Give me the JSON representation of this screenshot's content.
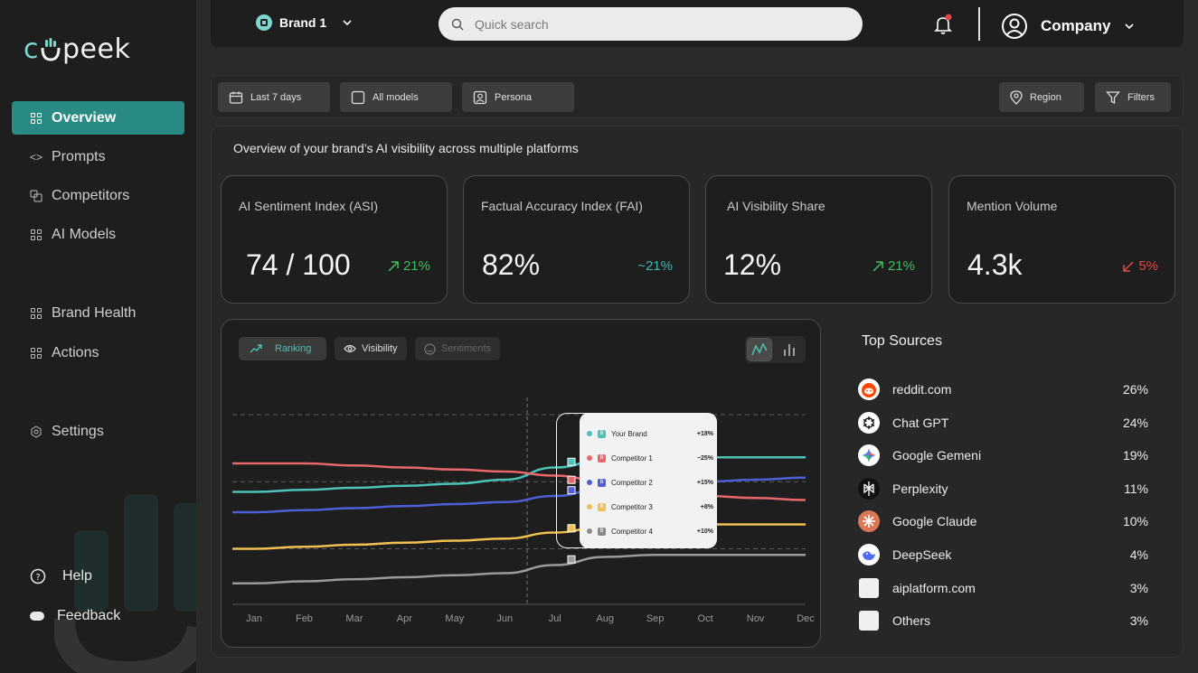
{
  "logo": {
    "text_c": "c",
    "text_rest": "peek"
  },
  "sidebar": {
    "items": [
      {
        "label": "Overview",
        "icon": "grid-icon",
        "active": true
      },
      {
        "label": "Prompts",
        "icon": "code-icon"
      },
      {
        "label": "Competitors",
        "icon": "competitors-icon"
      },
      {
        "label": "AI Models",
        "icon": "grid-icon"
      },
      {
        "label": "Brand Health",
        "icon": "grid-icon"
      },
      {
        "label": "Actions",
        "icon": "grid-icon"
      },
      {
        "label": "Settings",
        "icon": "settings-icon"
      }
    ],
    "help": "Help",
    "feedback": "Feedback"
  },
  "topbar": {
    "brand": "Brand 1",
    "search_placeholder": "Quick search",
    "company": "Company"
  },
  "filters": {
    "date": "Last 7 days",
    "models": "All models",
    "persona": "Persona",
    "region": "Region",
    "filters": "Filters"
  },
  "intro": "Overview of your brand’s AI visibility across multiple platforms",
  "kpis": [
    {
      "title": "AI Sentiment Index (ASI)",
      "value": "74 / 100",
      "delta": "21%",
      "direction": "up",
      "color": "#3fbf5f"
    },
    {
      "title": "Factual Accuracy Index (FAI)",
      "value": "82%",
      "delta": "~21%",
      "direction": "flat",
      "color": "#3fb8b0"
    },
    {
      "title": "AI Visibility Share",
      "value": "12%",
      "delta": "21%",
      "direction": "up",
      "color": "#3fbf5f"
    },
    {
      "title": "Mention Volume",
      "value": "4.3k",
      "delta": "5%",
      "direction": "down",
      "color": "#e04848"
    }
  ],
  "chart_tabs": {
    "ranking": "Ranking",
    "visibility": "Visibility",
    "sentiments": "Sentiments"
  },
  "chart_data": {
    "type": "line",
    "x": [
      "Jan",
      "Feb",
      "Mar",
      "Apr",
      "May",
      "Jun",
      "Jul",
      "Aug",
      "Sep",
      "Oct",
      "Nov",
      "Dec"
    ],
    "series": [
      {
        "name": "Your Brand",
        "color": "#4cc3b8",
        "values": [
          50,
          51,
          52,
          53,
          54,
          56,
          62,
          66,
          67,
          67,
          67,
          67
        ]
      },
      {
        "name": "Competitor 1",
        "color": "#e8676b",
        "values": [
          64,
          64,
          63,
          62,
          61,
          60,
          58,
          55,
          50,
          48,
          47,
          46
        ]
      },
      {
        "name": "Competitor 2",
        "color": "#4e5fd6",
        "values": [
          40,
          41,
          42,
          43,
          44,
          45,
          48,
          52,
          54,
          55,
          56,
          57
        ]
      },
      {
        "name": "Competitor 3",
        "color": "#f0c050",
        "values": [
          22,
          23,
          24,
          25,
          26,
          27,
          30,
          33,
          34,
          34,
          34,
          34
        ]
      },
      {
        "name": "Competitor 4",
        "color": "#9a9a9a",
        "values": [
          5,
          6,
          7,
          8,
          9,
          10,
          14,
          18,
          19,
          19,
          19,
          19
        ]
      }
    ],
    "ylim": [
      0,
      100
    ],
    "grid": "dashed",
    "legend": "tooltip"
  },
  "tooltip": {
    "badge": "B",
    "rows": [
      {
        "name": "Your Brand",
        "value": "+18%",
        "color": "#4cc3b8"
      },
      {
        "name": "Competitor 1",
        "value": "−25%",
        "color": "#e8676b"
      },
      {
        "name": "Competitor 2",
        "value": "+15%",
        "color": "#4e5fd6"
      },
      {
        "name": "Competitor 3",
        "value": "+8%",
        "color": "#f0c050"
      },
      {
        "name": "Competitor 4",
        "value": "+10%",
        "color": "#8a8a8a"
      }
    ]
  },
  "sources": {
    "title": "Top Sources",
    "items": [
      {
        "name": "reddit.com",
        "pct": "26%",
        "icon": "reddit-icon",
        "color": "#ff4500"
      },
      {
        "name": "Chat GPT",
        "pct": "24%",
        "icon": "chatgpt-icon",
        "color": "#ffffff"
      },
      {
        "name": "Google Gemeni",
        "pct": "19%",
        "icon": "gemini-icon",
        "color": "#ffffff"
      },
      {
        "name": "Perplexity",
        "pct": "11%",
        "icon": "perplexity-icon",
        "color": "#111111"
      },
      {
        "name": "Google Claude",
        "pct": "10%",
        "icon": "claude-icon",
        "color": "#d97757"
      },
      {
        "name": "DeepSeek",
        "pct": "4%",
        "icon": "deepseek-icon",
        "color": "#ffffff"
      },
      {
        "name": "aiplatform.com",
        "pct": "3%",
        "icon": "aiplatform-icon",
        "color": "#f0f0f0"
      },
      {
        "name": "Others",
        "pct": "3%",
        "icon": "others-icon",
        "color": "#f0f0f0"
      }
    ]
  }
}
